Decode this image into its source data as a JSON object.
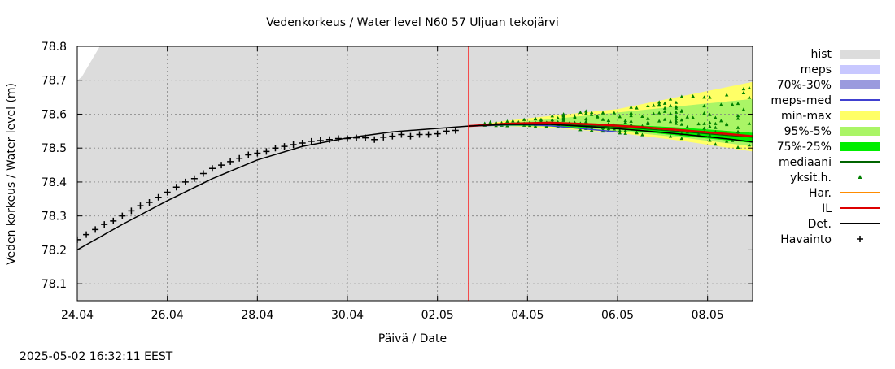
{
  "chart_data": {
    "type": "line",
    "title": "Vedenkorkeus / Water level   N60 57 Uljuan tekojärvi",
    "xlabel": "Päivä / Date",
    "ylabel": "Veden korkeus / Water level (m)",
    "timestamp": "2025-05-02 16:32:11 EEST",
    "x_range_days": [
      0,
      15
    ],
    "ylim": [
      78.05,
      78.8
    ],
    "yticks": [
      78.1,
      78.2,
      78.3,
      78.4,
      78.5,
      78.6,
      78.7,
      78.8
    ],
    "ytick_labels": [
      "78.1",
      "78.2",
      "78.3",
      "78.4",
      "78.5",
      "78.6",
      "78.7",
      "78.8"
    ],
    "xticks_days": [
      0,
      2,
      4,
      6,
      8,
      10,
      12,
      14
    ],
    "xtick_labels": [
      "24.04",
      "26.04",
      "28.04",
      "30.04",
      "02.05",
      "04.05",
      "06.05",
      "08.05"
    ],
    "now_day": 8.69,
    "grid": true,
    "legend_position": "right",
    "legend": [
      {
        "label": "hist",
        "kind": "box",
        "color": "#dcdcdc"
      },
      {
        "label": "meps",
        "kind": "box",
        "color": "#c8c8ff"
      },
      {
        "label": "70%-30%",
        "kind": "box",
        "color": "#9a9ade"
      },
      {
        "label": "meps-med",
        "kind": "line",
        "color": "#4040d0"
      },
      {
        "label": "min-max",
        "kind": "box",
        "color": "#ffff66"
      },
      {
        "label": "95%-5%",
        "kind": "box",
        "color": "#aaf566"
      },
      {
        "label": "75%-25%",
        "kind": "box",
        "color": "#00ee00"
      },
      {
        "label": "mediaani",
        "kind": "line",
        "color": "#006400"
      },
      {
        "label": "yksit.h.",
        "kind": "tri",
        "color": "#008000"
      },
      {
        "label": "Har.",
        "kind": "line",
        "color": "#ff8c00"
      },
      {
        "label": "IL",
        "kind": "line",
        "color": "#dd0000"
      },
      {
        "label": "Det.",
        "kind": "line",
        "color": "#000000"
      },
      {
        "label": "Havainto",
        "kind": "plus",
        "color": "#000000"
      }
    ],
    "hist_band": {
      "x": [
        0,
        0.1,
        0.5,
        15
      ],
      "upper": [
        78.7,
        78.71,
        78.8,
        78.8
      ],
      "lower": [
        78.05,
        78.05,
        78.05,
        78.05
      ]
    },
    "minmax_band": {
      "x": [
        8.69,
        9.5,
        10.5,
        12,
        13.5,
        15
      ],
      "upper": [
        78.565,
        78.58,
        78.595,
        78.615,
        78.655,
        78.695
      ],
      "lower": [
        78.565,
        78.565,
        78.56,
        78.545,
        78.52,
        78.49
      ]
    },
    "p95_5_band": {
      "x": [
        8.69,
        9.5,
        10.5,
        12,
        13.5,
        15
      ],
      "upper": [
        78.565,
        78.575,
        78.585,
        78.605,
        78.625,
        78.645
      ],
      "lower": [
        78.565,
        78.565,
        78.563,
        78.55,
        78.53,
        78.505
      ]
    },
    "p75_25_band": {
      "x": [
        8.69,
        9.5,
        10.5,
        12,
        13.5,
        15
      ],
      "upper": [
        78.565,
        78.572,
        78.575,
        78.57,
        78.56,
        78.545
      ],
      "lower": [
        78.565,
        78.566,
        78.565,
        78.555,
        78.535,
        78.515
      ]
    },
    "series": [
      {
        "name": "meps-med",
        "color": "#4040d0",
        "width": 1.5,
        "x": [
          8.69,
          9.0,
          9.5,
          10.0,
          10.5,
          11.0,
          11.5,
          12.0
        ],
        "y": [
          78.565,
          78.566,
          78.568,
          78.569,
          78.566,
          78.56,
          78.554,
          78.548
        ]
      },
      {
        "name": "mediaani",
        "color": "#006400",
        "width": 1.5,
        "x": [
          8.69,
          9.5,
          10.5,
          11.5,
          12.5,
          13.5,
          14.5,
          15.0
        ],
        "y": [
          78.565,
          78.569,
          78.571,
          78.566,
          78.558,
          78.548,
          78.537,
          78.532
        ]
      },
      {
        "name": "Har.",
        "color": "#ff8c00",
        "width": 1.5,
        "x": [
          8.69,
          9.5,
          10.5,
          11.5,
          12.5,
          13.5,
          14.5,
          15.0
        ],
        "y": [
          78.565,
          78.571,
          78.574,
          78.569,
          78.561,
          78.551,
          78.54,
          78.535
        ]
      },
      {
        "name": "IL",
        "color": "#dd0000",
        "width": 2.5,
        "x": [
          8.69,
          9.5,
          10.5,
          11.5,
          12.5,
          13.5,
          14.5,
          15.0
        ],
        "y": [
          78.565,
          78.572,
          78.575,
          78.57,
          78.562,
          78.552,
          78.541,
          78.535
        ]
      },
      {
        "name": "Det.",
        "color": "#000000",
        "width": 1.5,
        "x": [
          0,
          1,
          2,
          3,
          4,
          5,
          6,
          7,
          8,
          8.69,
          9.5,
          10.5,
          11.5,
          12.5,
          13.5,
          14.5,
          15.0
        ],
        "y": [
          78.2,
          78.275,
          78.345,
          78.41,
          78.465,
          78.505,
          78.53,
          78.548,
          78.558,
          78.565,
          78.57,
          78.57,
          78.562,
          78.552,
          78.54,
          78.526,
          78.518
        ]
      }
    ],
    "observations": {
      "x": [
        0.0,
        0.2,
        0.4,
        0.6,
        0.8,
        1.0,
        1.2,
        1.4,
        1.6,
        1.8,
        2.0,
        2.2,
        2.4,
        2.6,
        2.8,
        3.0,
        3.2,
        3.4,
        3.6,
        3.8,
        4.0,
        4.2,
        4.4,
        4.6,
        4.8,
        5.0,
        5.2,
        5.4,
        5.6,
        5.8,
        6.0,
        6.2,
        6.4,
        6.6,
        6.8,
        7.0,
        7.2,
        7.4,
        7.6,
        7.8,
        8.0,
        8.2,
        8.4
      ],
      "y": [
        78.23,
        78.245,
        78.26,
        78.275,
        78.285,
        78.3,
        78.315,
        78.33,
        78.34,
        78.355,
        78.37,
        78.385,
        78.4,
        78.41,
        78.425,
        78.44,
        78.45,
        78.46,
        78.47,
        78.48,
        78.485,
        78.49,
        78.5,
        78.505,
        78.51,
        78.515,
        78.52,
        78.522,
        78.525,
        78.528,
        78.528,
        78.53,
        78.53,
        78.525,
        78.532,
        78.535,
        78.54,
        78.535,
        78.54,
        78.54,
        78.542,
        78.55,
        78.552
      ]
    },
    "ensemble_members": {
      "x": [
        9.5,
        10.0,
        10.5,
        11.0,
        11.5,
        12.0,
        12.5,
        13.0,
        13.5,
        14.0,
        14.5,
        15.0
      ],
      "min": [
        78.565,
        78.563,
        78.56,
        78.555,
        78.55,
        78.545,
        78.537,
        78.528,
        78.52,
        78.51,
        78.5,
        78.49
      ],
      "max": [
        78.578,
        78.585,
        78.595,
        78.605,
        78.612,
        78.62,
        78.63,
        78.64,
        78.655,
        78.665,
        78.675,
        78.69
      ]
    }
  }
}
